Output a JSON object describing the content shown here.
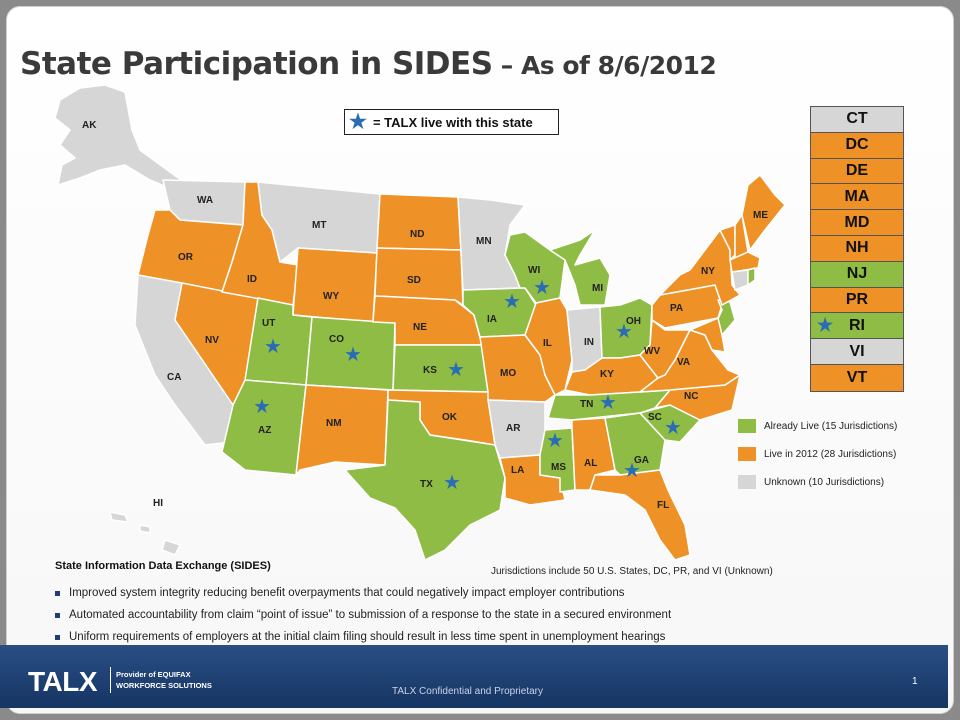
{
  "title": {
    "main": "State Participation in SIDES",
    "sub": " – As of 8/6/2012"
  },
  "legend_box": {
    "star_glyph": "★",
    "label": "= TALX live with this state"
  },
  "colors": {
    "already_live": "#8fbc44",
    "live_2012": "#ee9127",
    "unknown": "#d6d6d6",
    "star": "#2b6db5"
  },
  "map": {
    "states": [
      "AK",
      "WA",
      "OR",
      "CA",
      "NV",
      "ID",
      "MT",
      "WY",
      "UT",
      "AZ",
      "CO",
      "NM",
      "ND",
      "SD",
      "NE",
      "KS",
      "OK",
      "TX",
      "MN",
      "IA",
      "MO",
      "AR",
      "LA",
      "WI",
      "IL",
      "MS",
      "MI",
      "IN",
      "KY",
      "TN",
      "AL",
      "OH",
      "GA",
      "FL",
      "SC",
      "NC",
      "WV",
      "VA",
      "PA",
      "NY",
      "ME",
      "HI"
    ],
    "live_states": [
      "UT",
      "AZ",
      "CO",
      "KS",
      "TX",
      "IA",
      "WI",
      "TN",
      "MS",
      "GA",
      "SC",
      "OH"
    ]
  },
  "jurisdictions": [
    {
      "code": "CT",
      "status": "unknown",
      "star": false
    },
    {
      "code": "DC",
      "status": "live_2012",
      "star": false
    },
    {
      "code": "DE",
      "status": "live_2012",
      "star": false
    },
    {
      "code": "MA",
      "status": "live_2012",
      "star": false
    },
    {
      "code": "MD",
      "status": "live_2012",
      "star": false
    },
    {
      "code": "NH",
      "status": "live_2012",
      "star": false
    },
    {
      "code": "NJ",
      "status": "already_live",
      "star": false
    },
    {
      "code": "PR",
      "status": "live_2012",
      "star": false
    },
    {
      "code": "RI",
      "status": "already_live",
      "star": true
    },
    {
      "code": "VI",
      "status": "unknown",
      "star": false
    },
    {
      "code": "VT",
      "status": "live_2012",
      "star": false
    }
  ],
  "legend": [
    {
      "label": "Already Live (15 Jurisdictions)",
      "color": "#8fbc44"
    },
    {
      "label": "Live in 2012 (28 Jurisdictions)",
      "color": "#ee9127"
    },
    {
      "label": "Unknown  (10 Jurisdictions)",
      "color": "#d6d6d6"
    }
  ],
  "note": "Jurisdictions include 50 U.S. States, DC, PR, and  VI (Unknown)",
  "sides": {
    "heading": "State Information Data Exchange (SIDES)",
    "bullets": [
      "Improved system integrity reducing benefit overpayments that could negatively impact employer contributions",
      "Automated accountability from claim “point of issue” to submission of a response to the state in a secured environment",
      "Uniform requirements of employers at the initial claim filing should result in less time spent in unemployment  hearings"
    ]
  },
  "footer": {
    "logo": "TALX",
    "provider_line1": "Provider of EQUIFAX",
    "provider_line2": "WORKFORCE SOLUTIONS",
    "confidential": "TALX Confidential and Proprietary",
    "page": "1"
  }
}
